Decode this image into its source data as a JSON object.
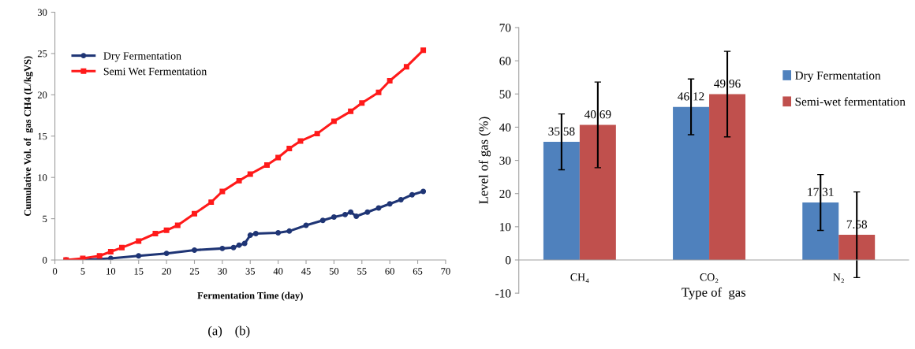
{
  "chart_data": [
    {
      "type": "line",
      "xlabel": "Fermentation Time (day)",
      "ylabel": "Cumulative Vol. of  gas CH4 (L/kgVS)",
      "xlim": [
        0,
        70
      ],
      "xticks": [
        0,
        5,
        10,
        15,
        20,
        25,
        30,
        35,
        40,
        45,
        50,
        55,
        60,
        65,
        70
      ],
      "ylim": [
        0,
        30
      ],
      "yticks": [
        0,
        5,
        10,
        15,
        20,
        25,
        30
      ],
      "grid": false,
      "legend": "top left",
      "annotations": [
        "(a)",
        "(b)"
      ],
      "series": [
        {
          "name": "Dry Fermentation",
          "color": "#1f3575",
          "marker": "circle",
          "x": [
            2,
            5,
            10,
            15,
            20,
            25,
            30,
            32,
            33,
            34,
            35,
            36,
            40,
            42,
            45,
            48,
            50,
            52,
            53,
            54,
            56,
            58,
            60,
            62,
            64,
            66
          ],
          "values": [
            0,
            0,
            0.2,
            0.5,
            0.8,
            1.2,
            1.4,
            1.5,
            1.8,
            2.0,
            3.0,
            3.2,
            3.3,
            3.5,
            4.2,
            4.8,
            5.2,
            5.5,
            5.8,
            5.3,
            5.8,
            6.3,
            6.8,
            7.3,
            7.9,
            8.3
          ]
        },
        {
          "name": "Semi Wet Fermentation",
          "color": "#ff1a1a",
          "marker": "square",
          "x": [
            2,
            5,
            8,
            10,
            12,
            15,
            18,
            20,
            22,
            25,
            28,
            30,
            33,
            35,
            38,
            40,
            42,
            44,
            47,
            50,
            53,
            55,
            58,
            60,
            63,
            66
          ],
          "values": [
            0,
            0.2,
            0.5,
            1.0,
            1.5,
            2.3,
            3.2,
            3.6,
            4.2,
            5.6,
            7.0,
            8.3,
            9.6,
            10.4,
            11.5,
            12.4,
            13.5,
            14.4,
            15.3,
            16.8,
            18.0,
            19.0,
            20.3,
            21.7,
            23.4,
            25.4
          ]
        }
      ]
    },
    {
      "type": "bar",
      "xlabel": "Type of  gas",
      "ylabel": "Level of gas (%)",
      "categories": [
        "CH₄",
        "CO₂",
        "N₂"
      ],
      "ylim": [
        -10,
        70
      ],
      "yticks": [
        -10,
        0,
        10,
        20,
        30,
        40,
        50,
        60,
        70
      ],
      "grid": false,
      "legend": "right",
      "data_labels": true,
      "series": [
        {
          "name": "Dry Fermentation",
          "color": "#4f81bd",
          "values": [
            35.58,
            46.12,
            17.31
          ],
          "errors": [
            8.4,
            8.4,
            8.4
          ]
        },
        {
          "name": "Semi-wet fermentation",
          "color": "#c0504d",
          "values": [
            40.69,
            49.96,
            7.58
          ],
          "errors": [
            12.9,
            12.9,
            12.9
          ]
        }
      ]
    }
  ]
}
